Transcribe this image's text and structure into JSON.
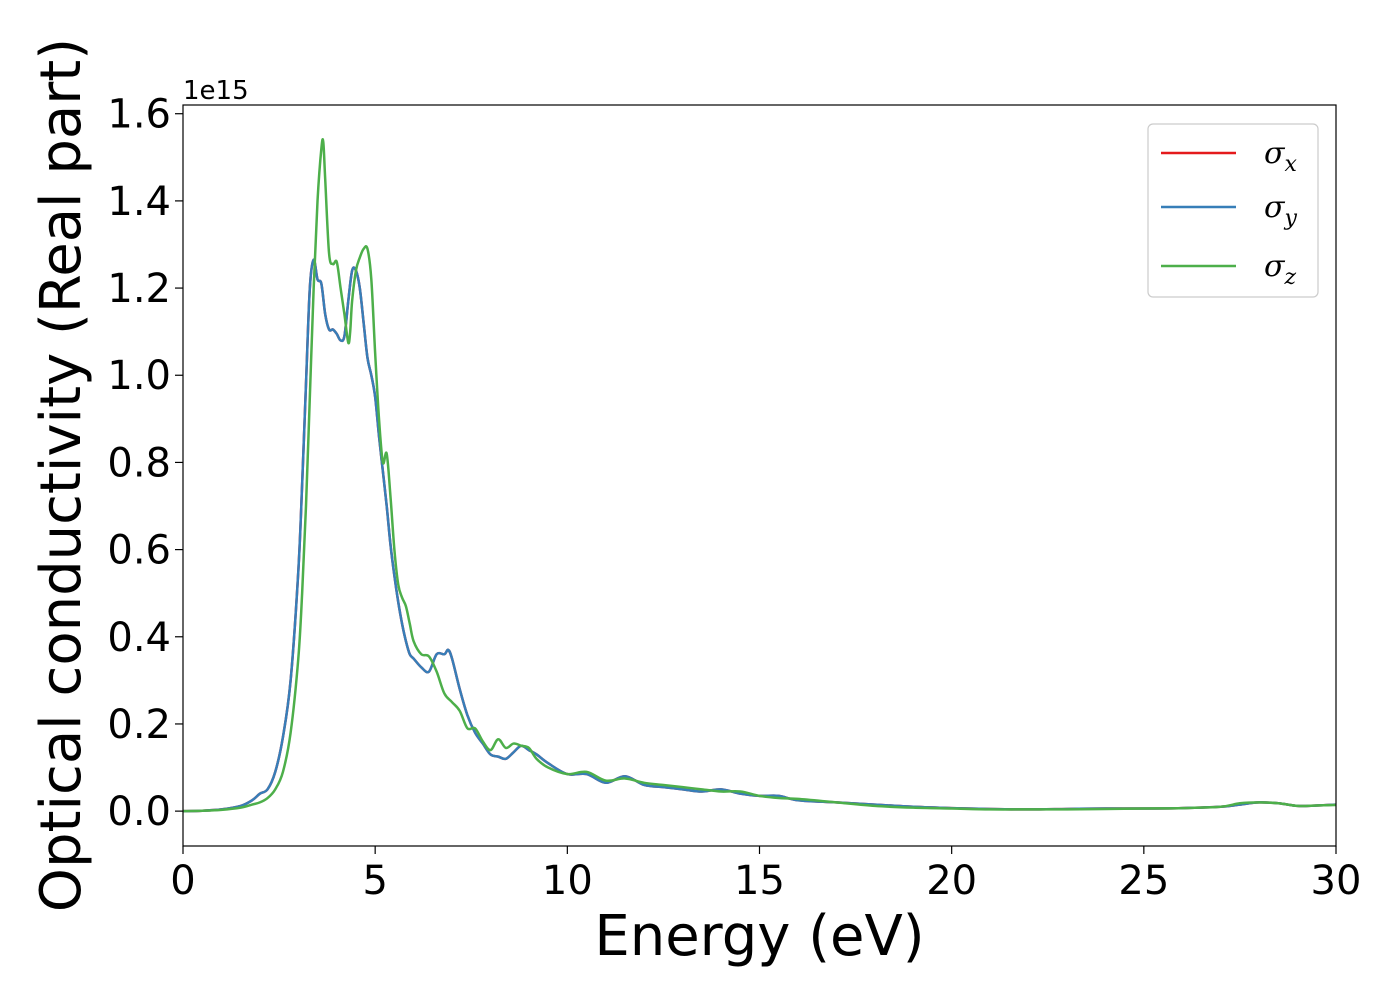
{
  "chart_data": {
    "type": "line",
    "xlabel": "Energy (eV)",
    "ylabel": "Optical conductivity (Real part)",
    "y_offset_label": "1e15",
    "xlim": [
      0,
      30
    ],
    "ylim": [
      -0.08,
      1.62
    ],
    "x_ticks": [
      0,
      5,
      10,
      15,
      20,
      25,
      30
    ],
    "x_tick_labels": [
      "0",
      "5",
      "10",
      "15",
      "20",
      "25",
      "30"
    ],
    "y_ticks": [
      0.0,
      0.2,
      0.4,
      0.6,
      0.8,
      1.0,
      1.2,
      1.4,
      1.6
    ],
    "y_tick_labels": [
      "0.0",
      "0.2",
      "0.4",
      "0.6",
      "0.8",
      "1.0",
      "1.2",
      "1.4",
      "1.6"
    ],
    "grid": false,
    "legend_position": "top-right",
    "series": [
      {
        "name": "σx",
        "symbol": "σ",
        "subscript": "x",
        "color": "#e41a1c",
        "x": [
          0,
          0.5,
          1.0,
          1.5,
          1.8,
          2.0,
          2.2,
          2.4,
          2.6,
          2.8,
          3.0,
          3.1,
          3.2,
          3.3,
          3.4,
          3.5,
          3.6,
          3.7,
          3.8,
          3.9,
          4.0,
          4.1,
          4.2,
          4.3,
          4.4,
          4.5,
          4.6,
          4.7,
          4.8,
          4.9,
          5.0,
          5.1,
          5.2,
          5.3,
          5.4,
          5.5,
          5.6,
          5.7,
          5.8,
          5.9,
          6.0,
          6.2,
          6.4,
          6.6,
          6.8,
          6.9,
          7.0,
          7.2,
          7.4,
          7.6,
          7.8,
          8.0,
          8.2,
          8.4,
          8.6,
          8.8,
          9.0,
          9.2,
          9.5,
          10.0,
          10.5,
          11.0,
          11.5,
          12.0,
          12.5,
          13.0,
          13.5,
          14.0,
          14.5,
          15.0,
          15.5,
          16.0,
          17.0,
          18.0,
          19.0,
          20.0,
          21.0,
          22.0,
          23.0,
          24.0,
          25.0,
          26.0,
          27.0,
          27.5,
          28.0,
          28.5,
          29.0,
          29.5,
          30.0
        ],
        "values": [
          0.0,
          0.001,
          0.004,
          0.012,
          0.025,
          0.04,
          0.05,
          0.09,
          0.17,
          0.3,
          0.55,
          0.75,
          0.98,
          1.2,
          1.265,
          1.22,
          1.21,
          1.14,
          1.105,
          1.105,
          1.095,
          1.08,
          1.09,
          1.17,
          1.24,
          1.24,
          1.2,
          1.12,
          1.04,
          1.0,
          0.95,
          0.86,
          0.78,
          0.7,
          0.61,
          0.54,
          0.48,
          0.43,
          0.39,
          0.36,
          0.35,
          0.33,
          0.32,
          0.36,
          0.36,
          0.37,
          0.35,
          0.28,
          0.22,
          0.18,
          0.155,
          0.13,
          0.125,
          0.12,
          0.135,
          0.15,
          0.14,
          0.13,
          0.11,
          0.085,
          0.085,
          0.065,
          0.08,
          0.06,
          0.055,
          0.05,
          0.045,
          0.05,
          0.04,
          0.035,
          0.035,
          0.025,
          0.02,
          0.015,
          0.01,
          0.007,
          0.005,
          0.004,
          0.005,
          0.006,
          0.006,
          0.007,
          0.01,
          0.015,
          0.02,
          0.018,
          0.012,
          0.013,
          0.015
        ]
      },
      {
        "name": "σy",
        "symbol": "σ",
        "subscript": "y",
        "color": "#377eb8",
        "x": [
          0,
          0.5,
          1.0,
          1.5,
          1.8,
          2.0,
          2.2,
          2.4,
          2.6,
          2.8,
          3.0,
          3.1,
          3.2,
          3.3,
          3.4,
          3.5,
          3.6,
          3.7,
          3.8,
          3.9,
          4.0,
          4.1,
          4.2,
          4.3,
          4.4,
          4.5,
          4.6,
          4.7,
          4.8,
          4.9,
          5.0,
          5.1,
          5.2,
          5.3,
          5.4,
          5.5,
          5.6,
          5.7,
          5.8,
          5.9,
          6.0,
          6.2,
          6.4,
          6.6,
          6.8,
          6.9,
          7.0,
          7.2,
          7.4,
          7.6,
          7.8,
          8.0,
          8.2,
          8.4,
          8.6,
          8.8,
          9.0,
          9.2,
          9.5,
          10.0,
          10.5,
          11.0,
          11.5,
          12.0,
          12.5,
          13.0,
          13.5,
          14.0,
          14.5,
          15.0,
          15.5,
          16.0,
          17.0,
          18.0,
          19.0,
          20.0,
          21.0,
          22.0,
          23.0,
          24.0,
          25.0,
          26.0,
          27.0,
          27.5,
          28.0,
          28.5,
          29.0,
          29.5,
          30.0
        ],
        "values": [
          0.0,
          0.001,
          0.004,
          0.012,
          0.025,
          0.04,
          0.05,
          0.09,
          0.17,
          0.3,
          0.55,
          0.75,
          0.98,
          1.2,
          1.265,
          1.22,
          1.21,
          1.14,
          1.105,
          1.105,
          1.095,
          1.08,
          1.09,
          1.17,
          1.24,
          1.24,
          1.2,
          1.12,
          1.04,
          1.0,
          0.95,
          0.86,
          0.78,
          0.7,
          0.61,
          0.54,
          0.48,
          0.43,
          0.39,
          0.36,
          0.35,
          0.33,
          0.32,
          0.36,
          0.36,
          0.37,
          0.35,
          0.28,
          0.22,
          0.18,
          0.155,
          0.13,
          0.125,
          0.12,
          0.135,
          0.15,
          0.14,
          0.13,
          0.11,
          0.085,
          0.085,
          0.065,
          0.08,
          0.06,
          0.055,
          0.05,
          0.045,
          0.05,
          0.04,
          0.035,
          0.035,
          0.025,
          0.02,
          0.015,
          0.01,
          0.007,
          0.005,
          0.004,
          0.005,
          0.006,
          0.006,
          0.007,
          0.01,
          0.015,
          0.02,
          0.018,
          0.012,
          0.013,
          0.015
        ]
      },
      {
        "name": "σz",
        "symbol": "σ",
        "subscript": "z",
        "color": "#4daf4a",
        "x": [
          0,
          0.5,
          1.0,
          1.5,
          1.8,
          2.0,
          2.2,
          2.4,
          2.6,
          2.8,
          3.0,
          3.1,
          3.2,
          3.3,
          3.4,
          3.5,
          3.6,
          3.65,
          3.7,
          3.8,
          3.9,
          4.0,
          4.1,
          4.2,
          4.3,
          4.35,
          4.4,
          4.5,
          4.6,
          4.7,
          4.8,
          4.9,
          5.0,
          5.1,
          5.2,
          5.3,
          5.4,
          5.5,
          5.6,
          5.7,
          5.8,
          5.9,
          6.0,
          6.2,
          6.4,
          6.6,
          6.8,
          7.0,
          7.2,
          7.4,
          7.6,
          7.8,
          8.0,
          8.2,
          8.4,
          8.6,
          8.8,
          9.0,
          9.2,
          9.5,
          10.0,
          10.5,
          11.0,
          11.5,
          12.0,
          12.5,
          13.0,
          13.5,
          14.0,
          14.5,
          15.0,
          15.5,
          16.0,
          17.0,
          18.0,
          19.0,
          20.0,
          21.0,
          22.0,
          23.0,
          24.0,
          25.0,
          26.0,
          27.0,
          27.5,
          28.0,
          28.5,
          29.0,
          29.5,
          30.0
        ],
        "values": [
          0.0,
          0.001,
          0.003,
          0.008,
          0.015,
          0.02,
          0.03,
          0.05,
          0.09,
          0.18,
          0.35,
          0.5,
          0.7,
          0.95,
          1.2,
          1.4,
          1.52,
          1.535,
          1.45,
          1.28,
          1.255,
          1.26,
          1.2,
          1.14,
          1.075,
          1.1,
          1.17,
          1.24,
          1.27,
          1.29,
          1.29,
          1.22,
          1.05,
          0.9,
          0.8,
          0.82,
          0.72,
          0.6,
          0.52,
          0.49,
          0.47,
          0.43,
          0.39,
          0.36,
          0.355,
          0.32,
          0.27,
          0.25,
          0.23,
          0.19,
          0.19,
          0.16,
          0.14,
          0.165,
          0.145,
          0.155,
          0.15,
          0.145,
          0.12,
          0.1,
          0.085,
          0.09,
          0.07,
          0.075,
          0.065,
          0.06,
          0.055,
          0.05,
          0.045,
          0.045,
          0.035,
          0.03,
          0.028,
          0.02,
          0.012,
          0.008,
          0.006,
          0.004,
          0.004,
          0.004,
          0.005,
          0.006,
          0.007,
          0.01,
          0.018,
          0.02,
          0.018,
          0.012,
          0.013,
          0.014
        ]
      }
    ]
  }
}
